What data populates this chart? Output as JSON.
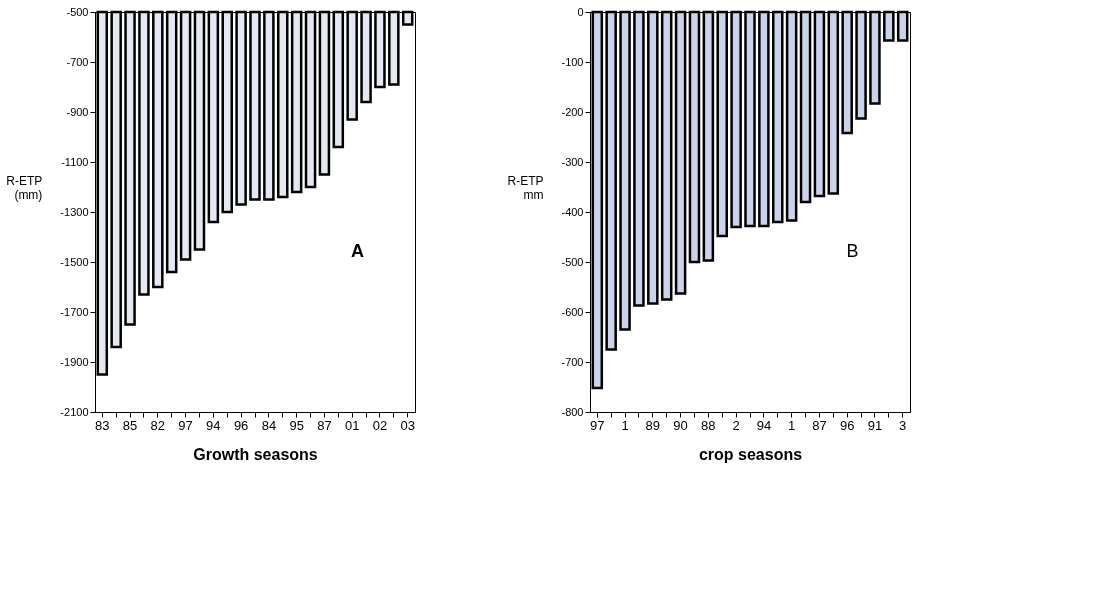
{
  "chart_data": [
    {
      "type": "bar",
      "xlabel": "Growth seasons",
      "ylabel": "R-ETP\n(mm)",
      "annotations": [
        "A"
      ],
      "color": "#e4e8f2",
      "grid": false,
      "categories": [
        "83",
        null,
        "85",
        null,
        "82",
        null,
        "97",
        null,
        "94",
        null,
        "96",
        null,
        "84",
        null,
        "95",
        null,
        "87",
        null,
        "01",
        null,
        "02",
        null,
        "03"
      ],
      "values": [
        -1950,
        -1840,
        -1750,
        -1630,
        -1600,
        -1540,
        -1490,
        -1450,
        -1340,
        -1300,
        -1270,
        -1250,
        -1250,
        -1240,
        -1220,
        -1200,
        -1150,
        -1040,
        -930,
        -860,
        -800,
        -790,
        -550
      ],
      "ylim": [
        -2100,
        -500
      ],
      "yticks": [
        -2100,
        -1900,
        -1700,
        -1500,
        -1300,
        -1100,
        -900,
        -700,
        -500
      ]
    },
    {
      "type": "bar",
      "xlabel": "crop seasons",
      "ylabel": "R-ETP\nmm",
      "annotations": [
        "B"
      ],
      "color": "#c9d3ea",
      "grid": false,
      "categories": [
        "97",
        null,
        "1",
        null,
        "89",
        null,
        "90",
        null,
        "88",
        null,
        "2",
        null,
        "94",
        null,
        "1",
        null,
        "87",
        null,
        "96",
        null,
        "91",
        null,
        "3"
      ],
      "values": [
        -752,
        -675,
        -635,
        -587,
        -583,
        -575,
        -563,
        -500,
        -497,
        -448,
        -430,
        -428,
        -428,
        -420,
        -417,
        -380,
        -368,
        -363,
        -242,
        -213,
        -183,
        -57,
        -57
      ],
      "ylim": [
        -800,
        0
      ],
      "yticks": [
        -800,
        -700,
        -600,
        -500,
        -400,
        -300,
        -200,
        -100,
        0
      ]
    }
  ]
}
